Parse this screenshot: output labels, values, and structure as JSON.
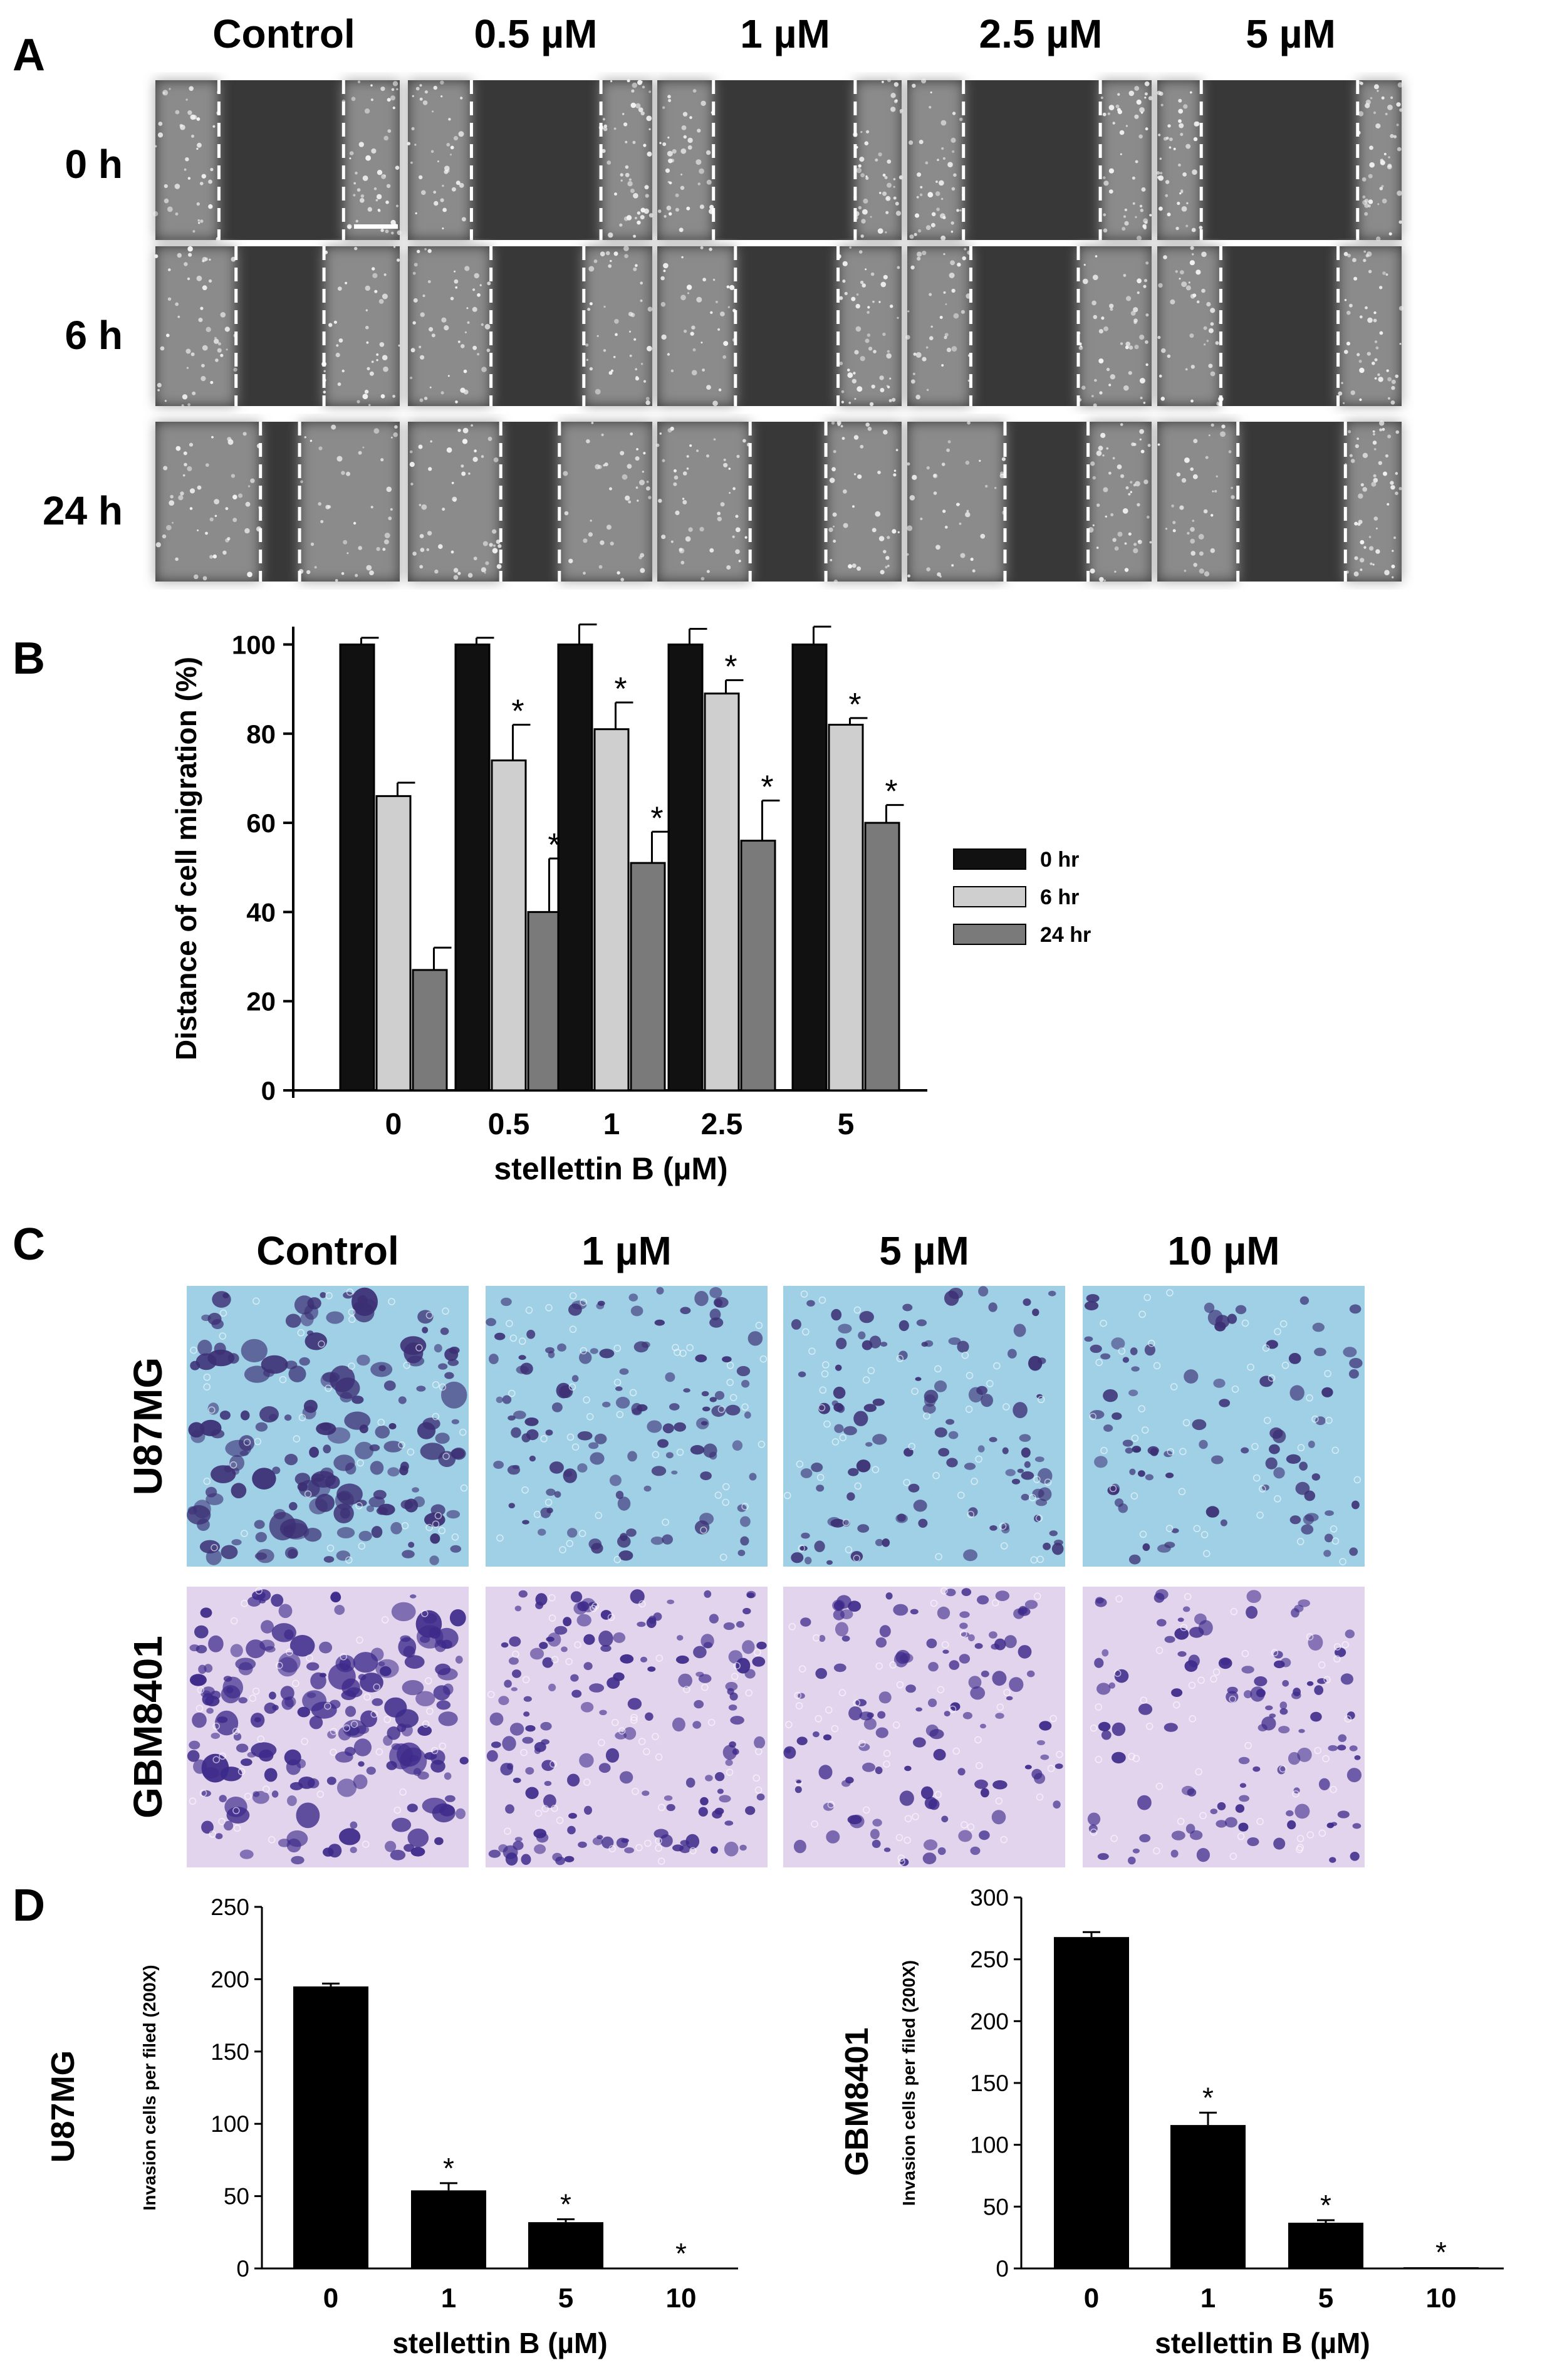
{
  "panels": {
    "A": {
      "letter": "A",
      "columns": [
        "Control",
        "0.5 µM",
        "1 µM",
        "2.5 µM",
        "5 µM"
      ],
      "rows": [
        "0 h",
        "6 h",
        "24 h"
      ],
      "gap_edges": [
        [
          [
            0.26,
            0.77
          ],
          [
            0.26,
            0.79
          ],
          [
            0.23,
            0.81
          ],
          [
            0.23,
            0.79
          ],
          [
            0.18,
            0.82
          ]
        ],
        [
          [
            0.33,
            0.69
          ],
          [
            0.34,
            0.72
          ],
          [
            0.32,
            0.74
          ],
          [
            0.26,
            0.7
          ],
          [
            0.26,
            0.74
          ]
        ],
        [
          [
            0.43,
            0.59
          ],
          [
            0.38,
            0.62
          ],
          [
            0.38,
            0.69
          ],
          [
            0.4,
            0.74
          ],
          [
            0.33,
            0.77
          ]
        ]
      ]
    },
    "B": {
      "letter": "B"
    },
    "C": {
      "letter": "C",
      "columns": [
        "Control",
        "1 µM",
        "5 µM",
        "10 µM"
      ],
      "rows": [
        "U87MG",
        "GBM8401"
      ]
    },
    "D": {
      "letter": "D"
    }
  },
  "chart_data": [
    {
      "type": "bar",
      "ylabel": "Distance of cell migration (%)",
      "xlabel": "stellettin B (µM)",
      "categories": [
        "0",
        "0.5",
        "1",
        "2.5",
        "5"
      ],
      "ylim": [
        0,
        100
      ],
      "yticks": [
        0,
        20,
        40,
        60,
        80,
        100
      ],
      "legend_position": "right",
      "series": [
        {
          "name": "0 hr",
          "color": "#111111",
          "values": [
            100,
            100,
            100,
            100,
            100
          ],
          "errors": [
            1.5,
            1.5,
            4.5,
            3.5,
            4
          ],
          "sig": [
            false,
            false,
            false,
            false,
            false
          ]
        },
        {
          "name": "6 hr",
          "color": "#cfcfcf",
          "values": [
            66,
            74,
            81,
            89,
            82
          ],
          "errors": [
            3,
            8,
            6,
            3,
            1.5
          ],
          "sig": [
            false,
            true,
            true,
            true,
            true
          ]
        },
        {
          "name": "24 hr",
          "color": "#7a7a7a",
          "values": [
            27,
            40,
            51,
            56,
            60
          ],
          "errors": [
            5,
            12,
            7,
            9,
            4
          ],
          "sig": [
            false,
            true,
            true,
            true,
            true
          ]
        }
      ]
    },
    {
      "type": "bar",
      "row_label": "U87MG",
      "ylabel": "Invasion cells per filed (200X)",
      "xlabel": "stellettin B (µM)",
      "categories": [
        "0",
        "1",
        "5",
        "10"
      ],
      "ylim": [
        0,
        250
      ],
      "yticks": [
        0,
        50,
        100,
        150,
        200,
        250
      ],
      "values": [
        195,
        54,
        32,
        0
      ],
      "errors": [
        2,
        5,
        2,
        0
      ],
      "sig": [
        false,
        true,
        true,
        true
      ],
      "color": "#000000"
    },
    {
      "type": "bar",
      "row_label": "GBM8401",
      "ylabel": "Invasion cells per filed (200X)",
      "xlabel": "stellettin B (µM)",
      "categories": [
        "0",
        "1",
        "5",
        "10"
      ],
      "ylim": [
        0,
        300
      ],
      "yticks": [
        0,
        50,
        100,
        150,
        200,
        250,
        300
      ],
      "values": [
        268,
        116,
        37,
        1
      ],
      "errors": [
        4,
        10,
        2,
        0
      ],
      "sig": [
        false,
        true,
        true,
        true
      ],
      "color": "#000000"
    }
  ],
  "colors": {
    "panel_a_bg": "#383838",
    "panel_a_edge": "#9a9a9a",
    "u87_bg": "#9fd0e6",
    "u87_cell": "#3c2f74",
    "gbm_bg": "#e3d4ee",
    "gbm_cell": "#3d2a8a"
  }
}
